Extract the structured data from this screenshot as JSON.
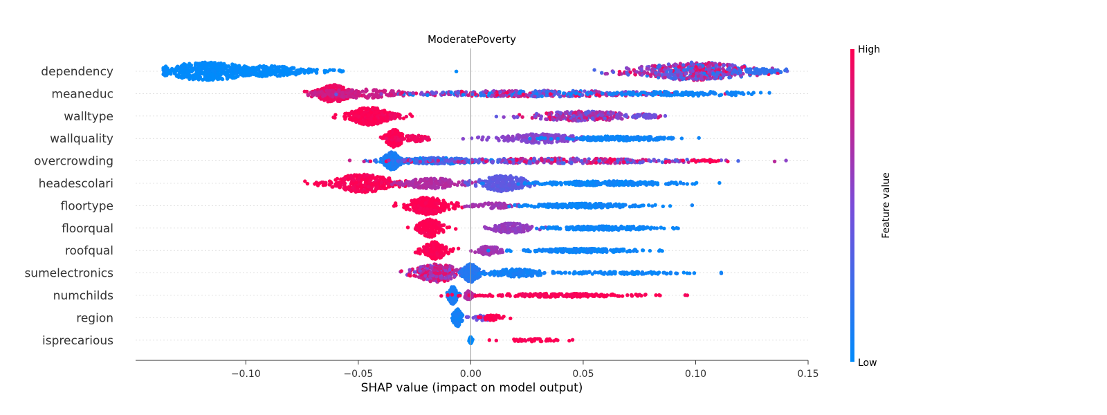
{
  "chart_data": {
    "type": "scatter",
    "subtype": "shap-beeswarm",
    "title": "ModeratePoverty",
    "xlabel": "SHAP value (impact on model output)",
    "xlim": [
      -0.149,
      0.15
    ],
    "xticks": [
      -0.1,
      -0.05,
      0.0,
      0.05,
      0.1,
      0.15
    ],
    "xtick_labels": [
      "−0.10",
      "−0.05",
      "0.00",
      "0.05",
      "0.10",
      "0.15"
    ],
    "zero_line": 0.0,
    "colorbar": {
      "label": "Feature value",
      "high_label": "High",
      "low_label": "Low",
      "high_color": "#ff0052",
      "low_color": "#008bfb"
    },
    "features": [
      {
        "name": "dependency",
        "clusters": [
          {
            "center": -0.117,
            "spread": 0.012,
            "n": 420,
            "thick": 1.0,
            "v": 0.0
          },
          {
            "center": -0.09,
            "spread": 0.009,
            "n": 200,
            "thick": 0.6,
            "v": 0.0
          },
          {
            "center": -0.07,
            "spread": 0.008,
            "n": 40,
            "thick": 0.2,
            "v": 0.0
          },
          {
            "center": -0.134,
            "spread": 0.002,
            "n": 8,
            "thick": 0.2,
            "v": 0.0
          },
          {
            "center": -0.007,
            "spread": 0.0005,
            "n": 1,
            "thick": 0.1,
            "v": 0.0
          },
          {
            "center": 0.066,
            "spread": 0.0005,
            "n": 1,
            "thick": 0.1,
            "v": 1.0
          },
          {
            "center": 0.1,
            "spread": 0.015,
            "n": 500,
            "thick": 1.0,
            "v": 0.55,
            "vspread": 0.45
          },
          {
            "center": 0.128,
            "spread": 0.006,
            "n": 60,
            "thick": 0.3,
            "v": 0.2
          }
        ]
      },
      {
        "name": "meaneduc",
        "clusters": [
          {
            "center": -0.061,
            "spread": 0.004,
            "n": 300,
            "thick": 1.0,
            "v": 0.95
          },
          {
            "center": -0.05,
            "spread": 0.012,
            "n": 150,
            "thick": 0.5,
            "v": 0.8
          },
          {
            "center": -0.02,
            "spread": 0.001,
            "n": 2,
            "thick": 0.1,
            "v": 0.6
          },
          {
            "center": 0.03,
            "spread": 0.03,
            "n": 400,
            "thick": 0.35,
            "v": 0.5,
            "vspread": 0.5
          },
          {
            "center": 0.095,
            "spread": 0.02,
            "n": 120,
            "thick": 0.25,
            "v": 0.05
          }
        ]
      },
      {
        "name": "walltype",
        "clusters": [
          {
            "center": -0.045,
            "spread": 0.005,
            "n": 300,
            "thick": 1.0,
            "v": 1.0
          },
          {
            "center": -0.035,
            "spread": 0.004,
            "n": 40,
            "thick": 0.3,
            "v": 0.95
          },
          {
            "center": 0.05,
            "spread": 0.014,
            "n": 260,
            "thick": 0.55,
            "v": 0.65,
            "vspread": 0.3
          },
          {
            "center": 0.078,
            "spread": 0.004,
            "n": 30,
            "thick": 0.2,
            "v": 0.45
          }
        ]
      },
      {
        "name": "wallquality",
        "clusters": [
          {
            "center": -0.034,
            "spread": 0.002,
            "n": 200,
            "thick": 1.0,
            "v": 1.0
          },
          {
            "center": -0.025,
            "spread": 0.005,
            "n": 60,
            "thick": 0.35,
            "v": 0.95
          },
          {
            "center": 0.03,
            "spread": 0.01,
            "n": 180,
            "thick": 0.5,
            "v": 0.55
          },
          {
            "center": 0.065,
            "spread": 0.014,
            "n": 180,
            "thick": 0.25,
            "v": 0.05
          }
        ]
      },
      {
        "name": "overcrowding",
        "clusters": [
          {
            "center": -0.035,
            "spread": 0.002,
            "n": 220,
            "thick": 1.0,
            "v": 0.1
          },
          {
            "center": -0.015,
            "spread": 0.012,
            "n": 250,
            "thick": 0.35,
            "v": 0.2,
            "vspread": 0.2
          },
          {
            "center": 0.04,
            "spread": 0.035,
            "n": 350,
            "thick": 0.28,
            "v": 0.6,
            "vspread": 0.4
          },
          {
            "center": 0.105,
            "spread": 0.005,
            "n": 20,
            "thick": 0.15,
            "v": 1.0
          }
        ]
      },
      {
        "name": "headescolari",
        "clusters": [
          {
            "center": -0.048,
            "spread": 0.008,
            "n": 300,
            "thick": 1.0,
            "v": 0.98
          },
          {
            "center": -0.017,
            "spread": 0.007,
            "n": 180,
            "thick": 0.6,
            "v": 0.7
          },
          {
            "center": 0.015,
            "spread": 0.006,
            "n": 260,
            "thick": 0.9,
            "v": 0.38
          },
          {
            "center": 0.06,
            "spread": 0.018,
            "n": 250,
            "thick": 0.25,
            "v": 0.05
          }
        ]
      },
      {
        "name": "floortype",
        "clusters": [
          {
            "center": -0.019,
            "spread": 0.005,
            "n": 280,
            "thick": 1.0,
            "v": 1.0
          },
          {
            "center": 0.01,
            "spread": 0.006,
            "n": 60,
            "thick": 0.3,
            "v": 0.65
          },
          {
            "center": 0.05,
            "spread": 0.014,
            "n": 220,
            "thick": 0.25,
            "v": 0.05
          }
        ]
      },
      {
        "name": "floorqual",
        "clusters": [
          {
            "center": -0.018,
            "spread": 0.003,
            "n": 180,
            "thick": 1.0,
            "v": 1.0
          },
          {
            "center": 0.018,
            "spread": 0.005,
            "n": 120,
            "thick": 0.55,
            "v": 0.6
          },
          {
            "center": 0.06,
            "spread": 0.014,
            "n": 200,
            "thick": 0.22,
            "v": 0.05
          }
        ]
      },
      {
        "name": "roofqual",
        "clusters": [
          {
            "center": -0.016,
            "spread": 0.003,
            "n": 180,
            "thick": 1.0,
            "v": 1.0
          },
          {
            "center": 0.008,
            "spread": 0.003,
            "n": 70,
            "thick": 0.5,
            "v": 0.65
          },
          {
            "center": 0.05,
            "spread": 0.014,
            "n": 220,
            "thick": 0.22,
            "v": 0.05
          }
        ]
      },
      {
        "name": "sumelectronics",
        "clusters": [
          {
            "center": -0.015,
            "spread": 0.006,
            "n": 260,
            "thick": 1.0,
            "v": 0.75,
            "vspread": 0.25
          },
          {
            "center": 0.0,
            "spread": 0.002,
            "n": 200,
            "thick": 1.0,
            "v": 0.15
          },
          {
            "center": 0.02,
            "spread": 0.007,
            "n": 130,
            "thick": 0.45,
            "v": 0.08
          },
          {
            "center": 0.065,
            "spread": 0.018,
            "n": 120,
            "thick": 0.15,
            "v": 0.05
          }
        ]
      },
      {
        "name": "numchilds",
        "clusters": [
          {
            "center": -0.008,
            "spread": 0.001,
            "n": 160,
            "thick": 1.0,
            "v": 0.1
          },
          {
            "center": -0.001,
            "spread": 0.001,
            "n": 60,
            "thick": 0.5,
            "v": 0.7
          },
          {
            "center": 0.04,
            "spread": 0.022,
            "n": 200,
            "thick": 0.2,
            "v": 0.98
          }
        ]
      },
      {
        "name": "region",
        "clusters": [
          {
            "center": -0.006,
            "spread": 0.001,
            "n": 100,
            "thick": 1.0,
            "v": 0.08
          },
          {
            "center": 0.005,
            "spread": 0.003,
            "n": 40,
            "thick": 0.3,
            "v": 0.45
          },
          {
            "center": 0.01,
            "spread": 0.003,
            "n": 40,
            "thick": 0.3,
            "v": 1.0
          }
        ]
      },
      {
        "name": "isprecarious",
        "clusters": [
          {
            "center": 0.0,
            "spread": 0.0003,
            "n": 120,
            "thick": 0.35,
            "v": 0.0
          },
          {
            "center": 0.028,
            "spread": 0.008,
            "n": 40,
            "thick": 0.15,
            "v": 1.0
          }
        ]
      }
    ]
  }
}
